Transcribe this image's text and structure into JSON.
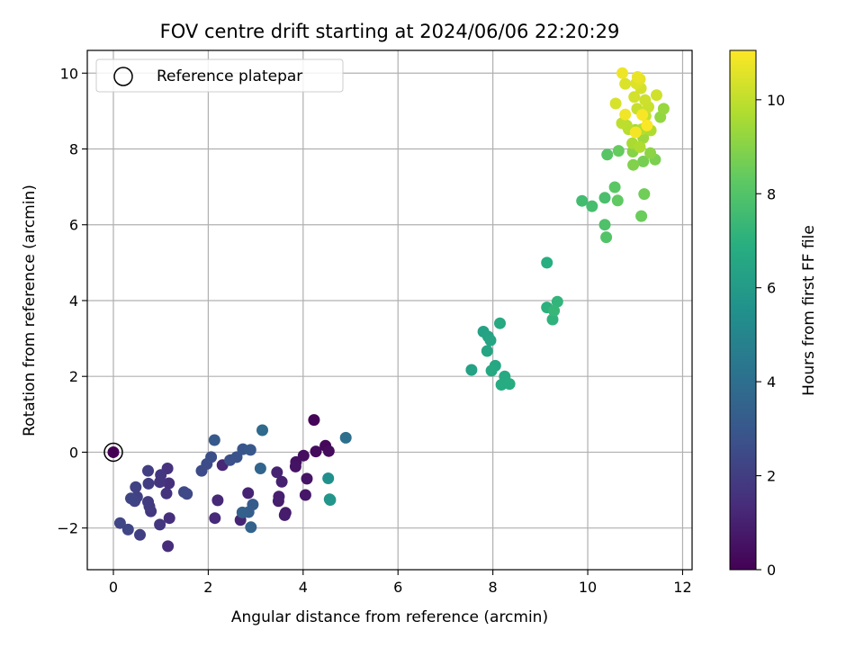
{
  "chart_data": {
    "type": "scatter",
    "title": "FOV centre drift starting at 2024/06/06 22:20:29",
    "xlabel": "Angular distance from reference (arcmin)",
    "ylabel": "Rotation from reference (arcmin)",
    "xlim": [
      -0.55,
      12.2
    ],
    "ylim": [
      -3.1,
      10.6
    ],
    "x_ticks": [
      0,
      2,
      4,
      6,
      8,
      10,
      12
    ],
    "y_ticks": [
      -2,
      0,
      2,
      4,
      6,
      8,
      10
    ],
    "grid": true,
    "colormap": "viridis",
    "colorbar": {
      "label": "Hours from first FF file",
      "range": [
        0,
        11.05
      ],
      "ticks": [
        0,
        2,
        4,
        6,
        8,
        10
      ]
    },
    "legend": {
      "position": "top-left",
      "entries": [
        "Reference platepar"
      ]
    },
    "reference_point": {
      "x": 0,
      "y": 0
    },
    "points": [
      [
        4.23,
        0.85,
        0.1
      ],
      [
        4.47,
        0.17,
        0.2
      ],
      [
        4.54,
        0.03,
        0.3
      ],
      [
        4.27,
        0.02,
        0.35
      ],
      [
        4.01,
        -0.09,
        0.4
      ],
      [
        3.85,
        -0.26,
        0.5
      ],
      [
        3.84,
        -0.38,
        0.55
      ],
      [
        4.08,
        -0.7,
        0.6
      ],
      [
        4.05,
        -1.13,
        0.7
      ],
      [
        3.63,
        -1.6,
        0.8
      ],
      [
        3.61,
        -1.66,
        0.85
      ],
      [
        3.48,
        -1.29,
        0.9
      ],
      [
        3.49,
        -1.17,
        0.95
      ],
      [
        3.55,
        -0.78,
        1.0
      ],
      [
        3.45,
        -0.53,
        1.05
      ],
      [
        2.84,
        -1.08,
        1.1
      ],
      [
        2.68,
        -1.79,
        1.15
      ],
      [
        2.3,
        -0.34,
        1.2
      ],
      [
        2.2,
        -1.27,
        1.25
      ],
      [
        2.14,
        -1.74,
        1.3
      ],
      [
        1.15,
        -2.48,
        1.4
      ],
      [
        1.18,
        -1.74,
        1.45
      ],
      [
        1.17,
        -0.82,
        1.5
      ],
      [
        1.14,
        -0.43,
        1.55
      ],
      [
        1.12,
        -1.09,
        1.6
      ],
      [
        0.98,
        -0.79,
        1.65
      ],
      [
        1.0,
        -0.6,
        1.7
      ],
      [
        0.98,
        -1.91,
        1.75
      ],
      [
        0.79,
        -1.56,
        1.8
      ],
      [
        0.76,
        -1.43,
        1.85
      ],
      [
        0.73,
        -1.31,
        1.9
      ],
      [
        0.74,
        -0.83,
        1.95
      ],
      [
        0.73,
        -0.49,
        2.0
      ],
      [
        0.56,
        -2.18,
        2.05
      ],
      [
        0.5,
        -1.18,
        2.1
      ],
      [
        0.47,
        -0.92,
        2.15
      ],
      [
        0.45,
        -1.29,
        2.2
      ],
      [
        0.37,
        -1.22,
        2.25
      ],
      [
        0.31,
        -2.04,
        2.3
      ],
      [
        0.14,
        -1.87,
        2.35
      ],
      [
        1.49,
        -1.05,
        2.4
      ],
      [
        1.55,
        -1.1,
        2.45
      ],
      [
        1.86,
        -0.49,
        2.5
      ],
      [
        1.97,
        -0.31,
        2.55
      ],
      [
        2.06,
        -0.13,
        2.6
      ],
      [
        2.46,
        -0.21,
        2.7
      ],
      [
        2.6,
        -0.13,
        2.8
      ],
      [
        2.73,
        0.08,
        2.9
      ],
      [
        2.89,
        0.06,
        3.0
      ],
      [
        2.13,
        0.32,
        3.1
      ],
      [
        2.94,
        -1.38,
        3.2
      ],
      [
        2.85,
        -1.58,
        3.3
      ],
      [
        2.72,
        -1.59,
        3.4
      ],
      [
        2.9,
        -1.98,
        3.5
      ],
      [
        3.1,
        -0.43,
        3.6
      ],
      [
        3.14,
        0.58,
        3.8
      ],
      [
        4.9,
        0.38,
        4.0
      ],
      [
        4.53,
        -0.69,
        5.5
      ],
      [
        4.56,
        -1.24,
        5.7
      ],
      [
        4.57,
        -1.26,
        5.75
      ],
      [
        7.55,
        2.17,
        6.3
      ],
      [
        7.8,
        3.18,
        6.35
      ],
      [
        7.9,
        3.05,
        6.4
      ],
      [
        7.95,
        2.95,
        6.45
      ],
      [
        7.88,
        2.67,
        6.5
      ],
      [
        8.05,
        2.28,
        6.55
      ],
      [
        7.97,
        2.15,
        6.6
      ],
      [
        8.15,
        3.4,
        6.65
      ],
      [
        8.25,
        2.0,
        6.7
      ],
      [
        8.18,
        1.78,
        6.75
      ],
      [
        8.35,
        1.8,
        6.8
      ],
      [
        9.14,
        5.0,
        6.9
      ],
      [
        9.14,
        3.82,
        7.0
      ],
      [
        9.26,
        3.5,
        7.1
      ],
      [
        9.36,
        3.97,
        7.2
      ],
      [
        9.29,
        3.73,
        7.3
      ],
      [
        9.88,
        6.63,
        7.6
      ],
      [
        10.09,
        6.49,
        7.7
      ],
      [
        10.36,
        6.71,
        7.8
      ],
      [
        10.36,
        6.0,
        7.9
      ],
      [
        10.39,
        5.67,
        8.0
      ],
      [
        10.41,
        7.85,
        8.1
      ],
      [
        10.57,
        6.99,
        8.2
      ],
      [
        10.63,
        6.64,
        8.3
      ],
      [
        10.65,
        7.95,
        8.4
      ],
      [
        11.13,
        6.23,
        8.5
      ],
      [
        11.19,
        6.81,
        8.6
      ],
      [
        11.17,
        7.67,
        8.7
      ],
      [
        11.42,
        7.72,
        8.8
      ],
      [
        10.96,
        7.58,
        8.9
      ],
      [
        10.95,
        7.93,
        9.0
      ],
      [
        11.32,
        7.89,
        9.1
      ],
      [
        11.53,
        8.84,
        9.2
      ],
      [
        11.6,
        9.06,
        9.3
      ],
      [
        11.17,
        8.29,
        9.4
      ],
      [
        11.0,
        8.5,
        9.5
      ],
      [
        10.94,
        8.15,
        9.6
      ],
      [
        11.33,
        8.49,
        9.7
      ],
      [
        11.14,
        8.52,
        9.8
      ],
      [
        10.86,
        8.52,
        9.85
      ],
      [
        10.82,
        8.62,
        9.9
      ],
      [
        10.72,
        8.68,
        9.95
      ],
      [
        11.22,
        8.87,
        10.0
      ],
      [
        11.04,
        9.06,
        10.1
      ],
      [
        11.28,
        9.11,
        10.15
      ],
      [
        11.21,
        9.29,
        10.2
      ],
      [
        11.45,
        9.42,
        10.25
      ],
      [
        10.98,
        9.37,
        10.3
      ],
      [
        11.12,
        9.6,
        10.35
      ],
      [
        10.59,
        9.2,
        10.4
      ],
      [
        10.79,
        9.72,
        10.45
      ],
      [
        11.02,
        9.73,
        10.5
      ],
      [
        11.1,
        9.84,
        10.6
      ],
      [
        11.05,
        9.9,
        10.7
      ],
      [
        10.73,
        10.0,
        10.8
      ],
      [
        10.79,
        8.91,
        10.85
      ],
      [
        11.01,
        8.44,
        10.9
      ],
      [
        11.15,
        8.9,
        10.95
      ],
      [
        11.25,
        8.62,
        11.0
      ],
      [
        11.1,
        8.05,
        9.7
      ]
    ]
  }
}
